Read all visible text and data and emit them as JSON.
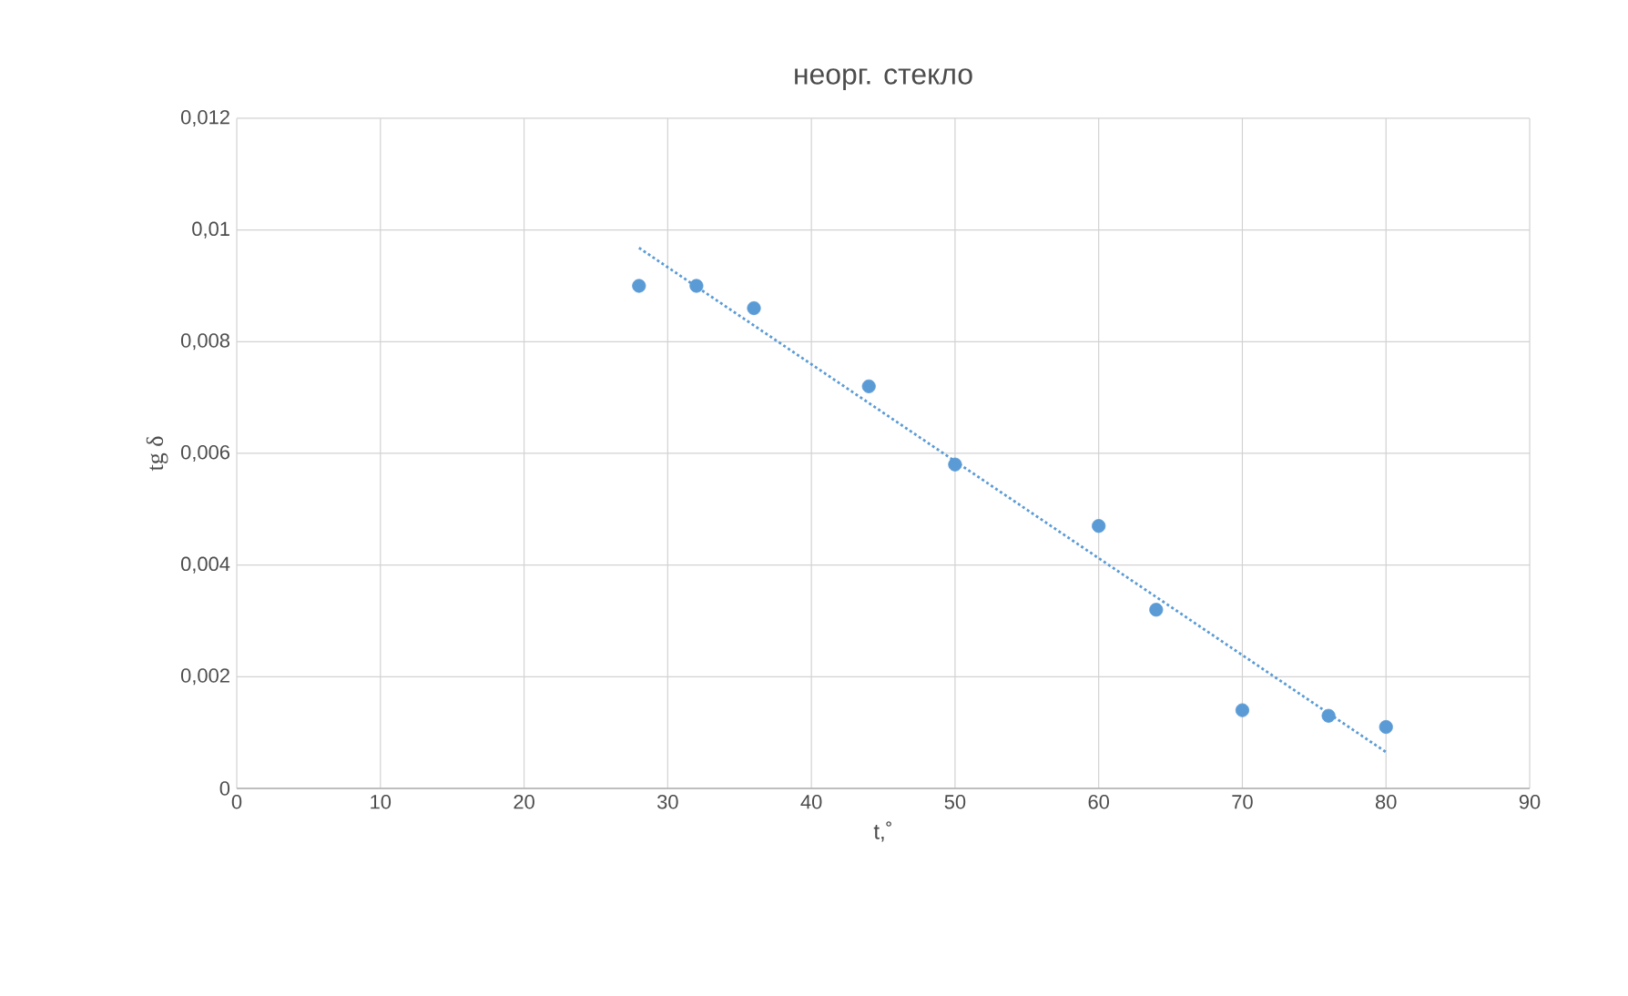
{
  "chart_data": {
    "type": "scatter",
    "title": "неорг. стекло",
    "xlabel": "t,˚",
    "ylabel": "tg δ",
    "xlim": [
      0,
      90
    ],
    "xticks": [
      0,
      10,
      20,
      30,
      40,
      50,
      60,
      70,
      80,
      90
    ],
    "ylim": [
      0,
      0.012
    ],
    "yticks": [
      0,
      {
        "value": 0.002,
        "label": "0,002"
      },
      {
        "value": 0.004,
        "label": "0,004"
      },
      {
        "value": 0.006,
        "label": "0,006"
      },
      {
        "value": 0.008,
        "label": "0,008"
      },
      {
        "value": 0.01,
        "label": "0,01"
      },
      {
        "value": 0.012,
        "label": "0,012"
      }
    ],
    "grid": true,
    "series": [
      {
        "color": "#5b9bd5",
        "marker": "circle",
        "x": [
          28,
          32,
          36,
          44,
          50,
          60,
          64,
          70,
          76,
          80
        ],
        "values": [
          0.009,
          0.009,
          0.0086,
          0.0072,
          0.0058,
          0.0047,
          0.0032,
          0.0014,
          0.0013,
          0.0011
        ]
      },
      {
        "type": "line",
        "color": "#5b9bd5",
        "marker": "none",
        "line_style": "dotted",
        "x": [
          28,
          80
        ],
        "values": [
          0.00968,
          0.00065
        ]
      }
    ]
  }
}
